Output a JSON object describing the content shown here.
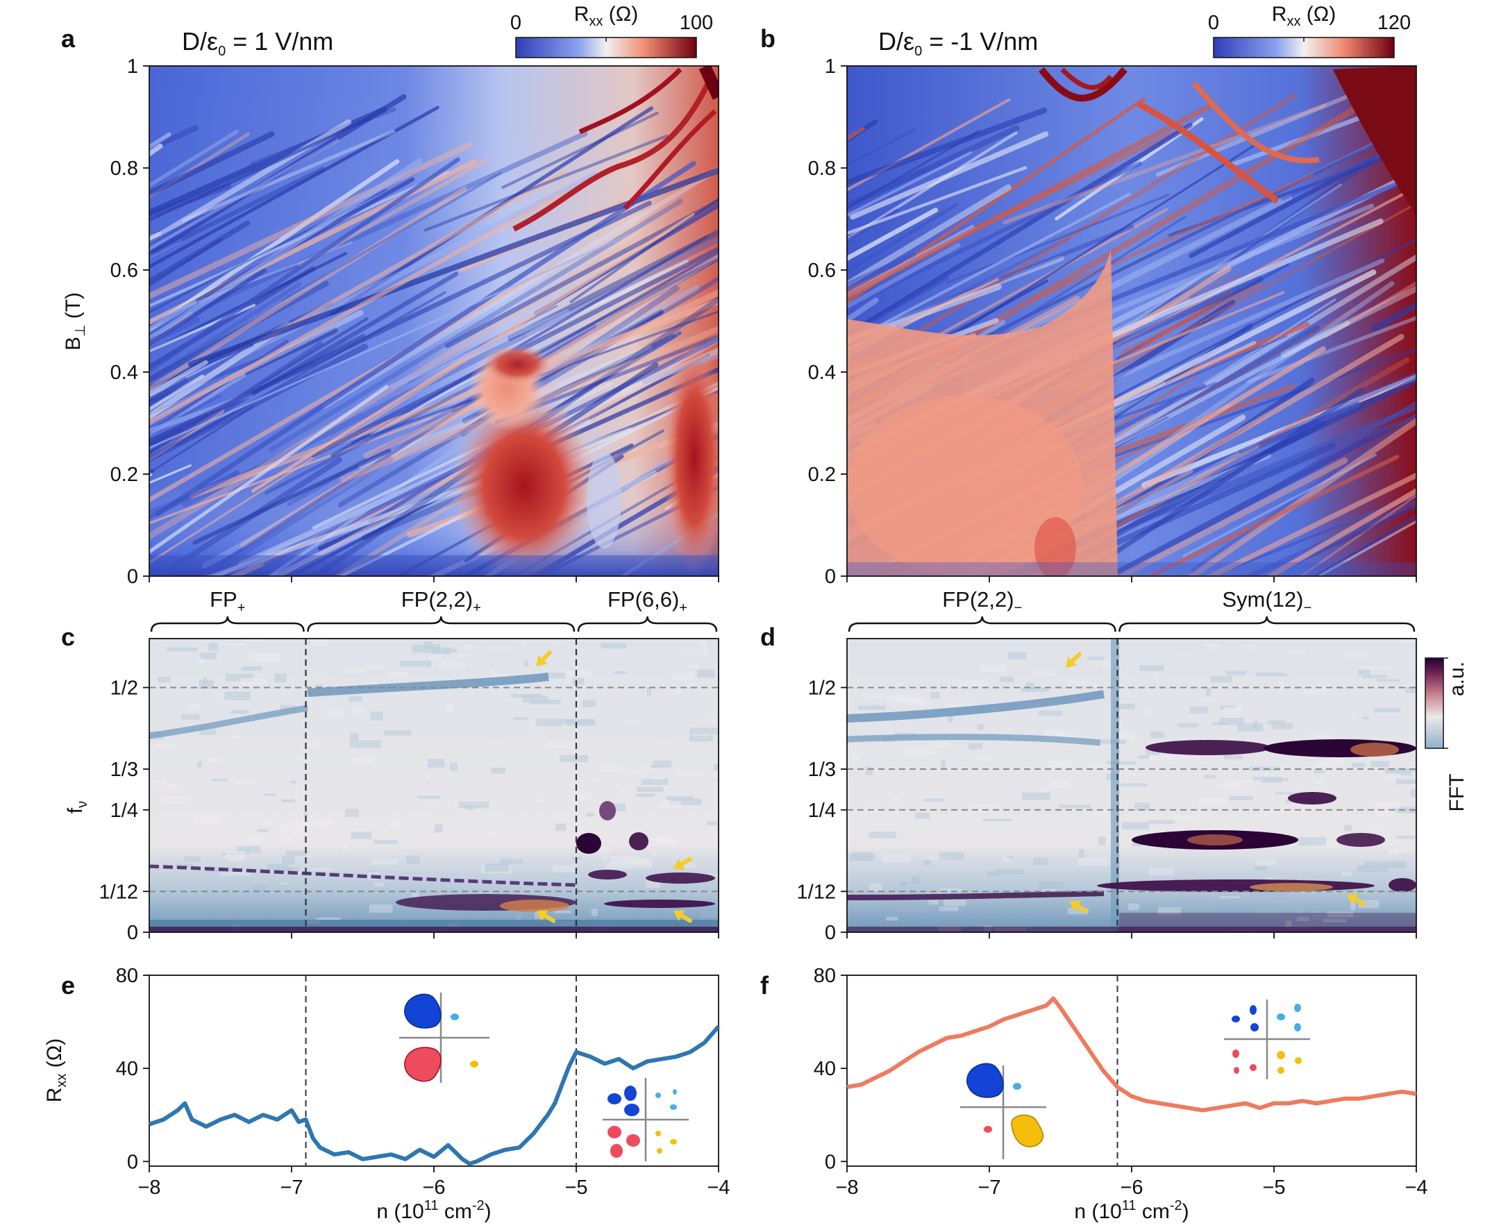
{
  "figure": {
    "panel_letters": [
      "a",
      "b",
      "c",
      "d",
      "e",
      "f"
    ],
    "colors": {
      "rxx_line_a": "#2e77b0",
      "rxx_line_b": "#ee7b5e",
      "arrow": "#f5cc2a",
      "cmap_low": "#3b4cc0",
      "cmap_mid": "#f2f0f0",
      "cmap_high": "#7a0a16",
      "fft_low": "#8fb2cc",
      "fft_mid": "#ece8ea",
      "fft_high": "#3a0a45",
      "valley_blue": "#1244d6",
      "valley_lightblue": "#46aee6",
      "valley_red": "#ef4b5e",
      "valley_yellow": "#f5be0b"
    }
  },
  "panel_a": {
    "title_prefix": "D/ε",
    "title_sub": "0",
    "title_suffix": " = 1 V/nm",
    "colorbar": {
      "label": "R",
      "label_sub": "xx",
      "label_unit": " (Ω)",
      "min": "0",
      "max": "100"
    },
    "y_label": "B",
    "y_label_sub": "⊥",
    "y_label_unit": " (T)",
    "y_ticks": [
      "0",
      "0.2",
      "0.4",
      "0.6",
      "0.8",
      "1"
    ]
  },
  "panel_b": {
    "title_prefix": "D/ε",
    "title_sub": "0",
    "title_suffix": " = -1 V/nm",
    "colorbar": {
      "label": "R",
      "label_sub": "xx",
      "label_unit": " (Ω)",
      "min": "0",
      "max": "120"
    },
    "y_ticks": [
      "0",
      "0.2",
      "0.4",
      "0.6",
      "0.8",
      "1"
    ]
  },
  "panel_c": {
    "brackets": [
      {
        "main": "FP",
        "sub": "+"
      },
      {
        "main": "FP(2,2)",
        "sub": "+"
      },
      {
        "main": "FP(6,6)",
        "sub": "+"
      }
    ],
    "y_label": "f",
    "y_label_sub": "ν",
    "y_ticks": [
      "0",
      "1/12",
      "1/4",
      "1/3",
      "1/2"
    ]
  },
  "panel_d": {
    "brackets": [
      {
        "main": "FP(2,2)",
        "sub": "−"
      },
      {
        "main": "Sym(12)",
        "sub": "−"
      }
    ],
    "y_ticks": [
      "0",
      "1/12",
      "1/4",
      "1/3",
      "1/2"
    ],
    "colorbar_top": "a.u.",
    "colorbar_side": "FFT"
  },
  "panel_e": {
    "y_label": "R",
    "y_label_sub": "xx",
    "y_label_unit": " (Ω)",
    "y_ticks": [
      "0",
      "40",
      "80"
    ],
    "x_ticks": [
      "−8",
      "−7",
      "−6",
      "−5",
      "−4"
    ],
    "x_label": "n (10",
    "x_label_sup1": "11",
    "x_label_mid": " cm",
    "x_label_sup2": "-2",
    "x_label_end": ")"
  },
  "panel_f": {
    "y_ticks": [
      "0",
      "40",
      "80"
    ],
    "x_ticks": [
      "−8",
      "−7",
      "−6",
      "−5",
      "−4"
    ],
    "x_label": "n (10",
    "x_label_sup1": "11",
    "x_label_mid": " cm",
    "x_label_sup2": "-2",
    "x_label_end": ")"
  },
  "chart_data": [
    {
      "type": "heatmap",
      "title": "D/ε0 = 1 V/nm",
      "xlabel": "n (10^11 cm^-2)",
      "ylabel": "B⊥ (T)",
      "xlim": [
        -8,
        -4
      ],
      "ylim": [
        0,
        1
      ],
      "colorbar": {
        "label": "Rxx (Ω)",
        "range": [
          0,
          100
        ]
      }
    },
    {
      "type": "heatmap",
      "title": "D/ε0 = -1 V/nm",
      "xlabel": "n (10^11 cm^-2)",
      "ylabel": "B⊥ (T)",
      "xlim": [
        -8,
        -4
      ],
      "ylim": [
        0,
        1
      ],
      "colorbar": {
        "label": "Rxx (Ω)",
        "range": [
          0,
          120
        ]
      }
    },
    {
      "type": "heatmap",
      "xlabel": "n (10^11 cm^-2)",
      "ylabel": "fν",
      "xlim": [
        -8,
        -4
      ],
      "ylim": [
        0,
        0.6
      ],
      "region_boundaries": [
        -6.9,
        -5.0
      ],
      "regions": [
        "FP+",
        "FP(2,2)+",
        "FP(6,6)+"
      ],
      "guide_lines": [
        0.0833,
        0.5
      ]
    },
    {
      "type": "heatmap",
      "xlabel": "n (10^11 cm^-2)",
      "ylabel": "fν",
      "xlim": [
        -8,
        -4
      ],
      "ylim": [
        0,
        0.6
      ],
      "region_boundaries": [
        -6.1
      ],
      "regions": [
        "FP(2,2)−",
        "Sym(12)−"
      ],
      "guide_lines": [
        0.0833,
        0.25,
        0.3333,
        0.5
      ],
      "colorbar": {
        "label": "FFT",
        "unit": "a.u."
      }
    },
    {
      "type": "line",
      "xlabel": "n (10^11 cm^-2)",
      "ylabel": "Rxx (Ω)",
      "xlim": [
        -8,
        -4
      ],
      "ylim": [
        -2,
        80
      ],
      "region_boundaries": [
        -6.9,
        -5.0
      ],
      "series": [
        {
          "name": "Rxx (D/ε0 = 1 V/nm)",
          "x": [
            -8.0,
            -7.9,
            -7.8,
            -7.75,
            -7.7,
            -7.6,
            -7.5,
            -7.4,
            -7.3,
            -7.2,
            -7.1,
            -7.0,
            -6.95,
            -6.9,
            -6.85,
            -6.8,
            -6.7,
            -6.6,
            -6.5,
            -6.4,
            -6.3,
            -6.2,
            -6.1,
            -6.0,
            -5.9,
            -5.8,
            -5.75,
            -5.7,
            -5.6,
            -5.5,
            -5.4,
            -5.3,
            -5.2,
            -5.15,
            -5.1,
            -5.05,
            -5.0,
            -4.9,
            -4.8,
            -4.7,
            -4.6,
            -4.5,
            -4.4,
            -4.3,
            -4.2,
            -4.1,
            -4.0
          ],
          "y": [
            16,
            18,
            22,
            25,
            18,
            15,
            18,
            20,
            17,
            20,
            18,
            22,
            17,
            18,
            10,
            6,
            3,
            4,
            1,
            2,
            3,
            1,
            5,
            2,
            7,
            1,
            -1,
            0,
            3,
            5,
            6,
            12,
            20,
            25,
            33,
            41,
            47,
            45,
            42,
            44,
            40,
            43,
            44,
            45,
            47,
            51,
            58
          ]
        }
      ]
    },
    {
      "type": "line",
      "xlabel": "n (10^11 cm^-2)",
      "ylabel": "Rxx (Ω)",
      "xlim": [
        -8,
        -4
      ],
      "ylim": [
        -2,
        80
      ],
      "region_boundaries": [
        -6.1
      ],
      "series": [
        {
          "name": "Rxx (D/ε0 = -1 V/nm)",
          "x": [
            -8.0,
            -7.9,
            -7.8,
            -7.7,
            -7.6,
            -7.5,
            -7.4,
            -7.3,
            -7.2,
            -7.1,
            -7.0,
            -6.9,
            -6.8,
            -6.7,
            -6.6,
            -6.55,
            -6.5,
            -6.4,
            -6.3,
            -6.2,
            -6.1,
            -6.0,
            -5.9,
            -5.8,
            -5.7,
            -5.6,
            -5.5,
            -5.4,
            -5.3,
            -5.2,
            -5.1,
            -5.0,
            -4.9,
            -4.8,
            -4.7,
            -4.6,
            -4.5,
            -4.4,
            -4.3,
            -4.2,
            -4.1,
            -4.0
          ],
          "y": [
            32,
            33,
            36,
            39,
            43,
            47,
            50,
            53,
            54,
            56,
            58,
            61,
            63,
            65,
            67,
            70,
            66,
            57,
            48,
            39,
            32,
            28,
            26,
            25,
            24,
            23,
            22,
            23,
            24,
            25,
            23,
            25,
            25,
            26,
            25,
            26,
            27,
            27,
            28,
            29,
            30,
            29
          ]
        }
      ]
    }
  ]
}
